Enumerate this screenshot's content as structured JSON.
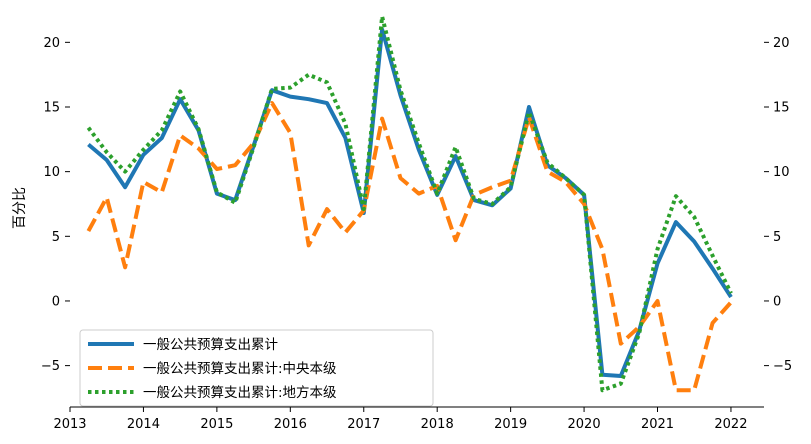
{
  "chart_data": {
    "type": "line",
    "ylabel": "百分比",
    "xlim": [
      2013,
      2022.45
    ],
    "ylim": [
      -8.2,
      22.5
    ],
    "x_ticks": [
      2013,
      2014,
      2015,
      2016,
      2017,
      2018,
      2019,
      2020,
      2021,
      2022
    ],
    "x_tick_labels": [
      "2013",
      "2014",
      "2015",
      "2016",
      "2017",
      "2018",
      "2019",
      "2020",
      "2021",
      "2022"
    ],
    "y_ticks": [
      -5,
      0,
      5,
      10,
      15,
      20
    ],
    "y_tick_labels": [
      "−5",
      "0",
      "5",
      "10",
      "15",
      "20"
    ],
    "grid": false,
    "legend_position": "lower-left",
    "x": [
      2013.25,
      2013.5,
      2013.75,
      2014.0,
      2014.25,
      2014.5,
      2014.75,
      2015.0,
      2015.25,
      2015.5,
      2015.75,
      2016.0,
      2016.25,
      2016.5,
      2016.75,
      2017.0,
      2017.25,
      2017.5,
      2017.75,
      2018.0,
      2018.25,
      2018.5,
      2018.75,
      2019.0,
      2019.25,
      2019.5,
      2019.75,
      2020.0,
      2020.25,
      2020.5,
      2020.75,
      2021.0,
      2021.25,
      2021.5,
      2021.75,
      2022.0
    ],
    "series": [
      {
        "name": "一般公共预算支出累计",
        "color": "#1f77b4",
        "dash": "solid",
        "values": [
          12.1,
          10.9,
          8.8,
          11.3,
          12.6,
          15.6,
          13.2,
          8.3,
          7.8,
          12.0,
          16.3,
          15.8,
          15.6,
          15.3,
          12.6,
          6.8,
          21.0,
          15.9,
          11.7,
          8.2,
          11.2,
          7.8,
          7.4,
          8.7,
          15.0,
          10.5,
          9.5,
          8.2,
          -5.7,
          -5.8,
          -2.3,
          2.9,
          6.1,
          4.6,
          2.5,
          0.3
        ]
      },
      {
        "name": "一般公共预算支出累计:中央本级",
        "color": "#ff7f0e",
        "dash": "dashed",
        "values": [
          5.4,
          8.0,
          2.6,
          9.2,
          8.4,
          12.8,
          11.8,
          10.2,
          10.5,
          12.2,
          15.3,
          13.0,
          4.3,
          7.1,
          5.3,
          7.0,
          14.1,
          9.5,
          8.3,
          8.9,
          4.7,
          8.2,
          8.8,
          9.3,
          14.2,
          10.0,
          9.2,
          7.5,
          4.0,
          -3.3,
          -2.0,
          0.0,
          -6.9,
          -6.9,
          -1.7,
          -0.1
        ]
      },
      {
        "name": "一般公共预算支出累计:地方本级",
        "color": "#2ca02c",
        "dash": "dotted",
        "values": [
          13.4,
          11.5,
          10.0,
          11.7,
          13.2,
          16.2,
          13.3,
          8.4,
          7.6,
          11.9,
          16.4,
          16.5,
          17.5,
          16.9,
          13.7,
          7.1,
          22.0,
          16.3,
          12.2,
          8.3,
          11.9,
          7.9,
          7.5,
          8.8,
          14.6,
          10.7,
          9.5,
          8.2,
          -6.9,
          -6.4,
          -2.5,
          4.0,
          8.1,
          6.5,
          3.5,
          0.6
        ]
      }
    ]
  }
}
